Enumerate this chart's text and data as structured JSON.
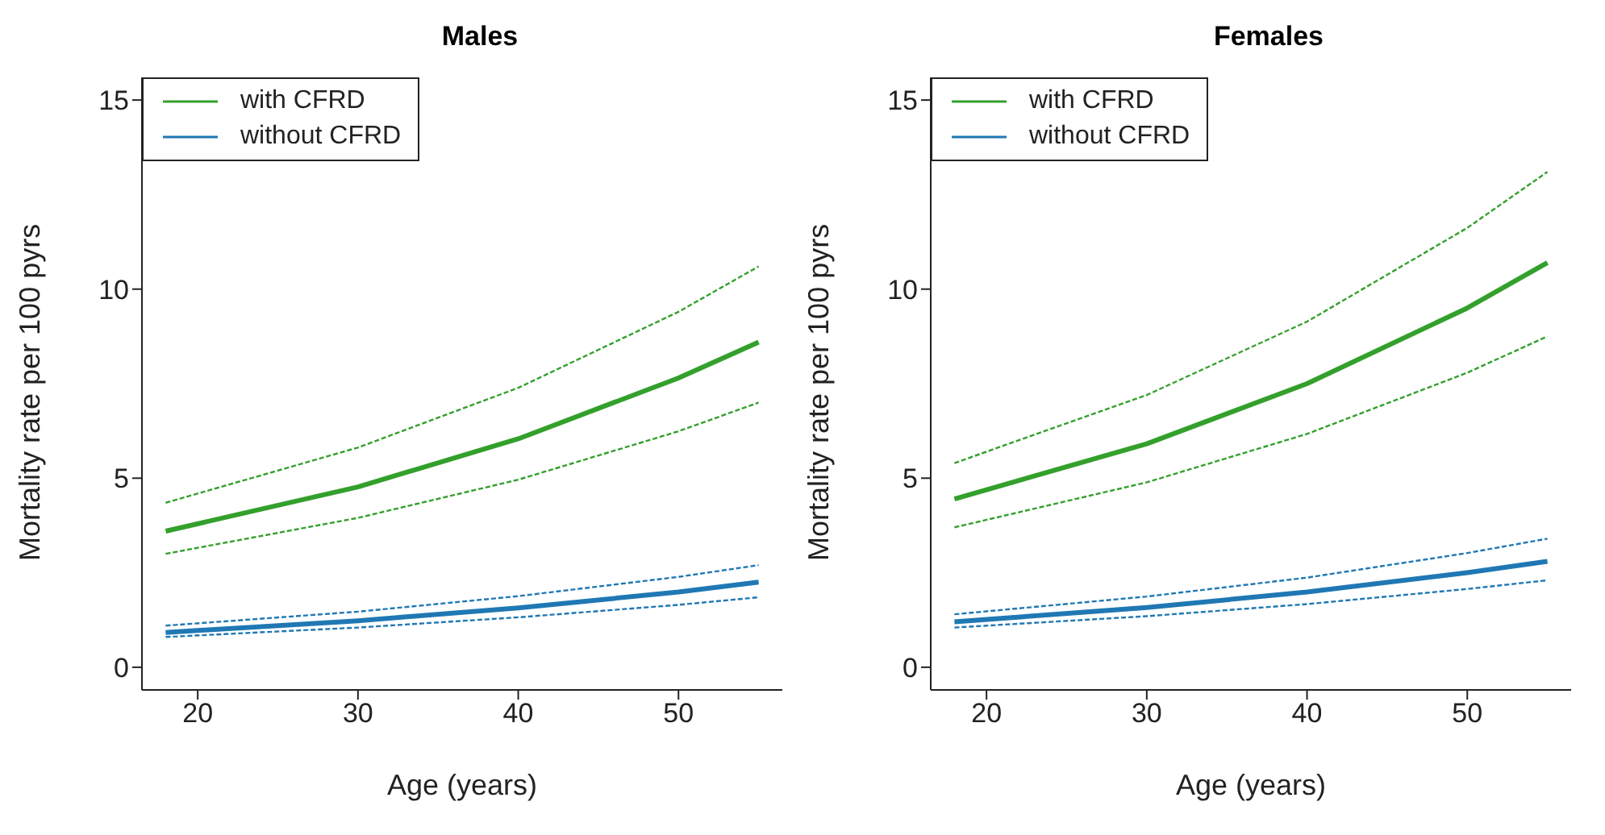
{
  "chart_data": [
    {
      "type": "line",
      "title": "Males",
      "xlabel": "Age (years)",
      "ylabel": "Mortality rate per 100 pyrs",
      "x": [
        18,
        30,
        40,
        50,
        55
      ],
      "xlim": [
        16.52,
        56.48
      ],
      "xticks": [
        20,
        30,
        40,
        50
      ],
      "ylim": [
        -0.6,
        15.6
      ],
      "yticks": [
        0,
        5,
        10,
        15
      ],
      "grid": false,
      "legend": "top left",
      "marker": "none",
      "series": [
        {
          "name": "with CFRD",
          "color": "#33a02c",
          "line_style": "solid",
          "values": [
            3.6,
            4.77,
            6.04,
            7.65,
            8.6
          ]
        },
        {
          "color": "#33a02c",
          "line_style": "dashed",
          "values": [
            3.0,
            3.95,
            4.96,
            6.24,
            7.0
          ]
        },
        {
          "color": "#33a02c",
          "line_style": "dashed",
          "values": [
            4.35,
            5.81,
            7.39,
            9.4,
            10.6
          ]
        },
        {
          "name": "without CFRD",
          "color": "#1f78b4",
          "line_style": "solid",
          "values": [
            0.92,
            1.23,
            1.57,
            1.99,
            2.25
          ]
        },
        {
          "color": "#1f78b4",
          "line_style": "dashed",
          "values": [
            0.8,
            1.05,
            1.32,
            1.65,
            1.85
          ]
        },
        {
          "color": "#1f78b4",
          "line_style": "dashed",
          "values": [
            1.1,
            1.47,
            1.88,
            2.39,
            2.7
          ]
        }
      ]
    },
    {
      "type": "line",
      "title": "Females",
      "xlabel": "Age (years)",
      "ylabel": "Mortality rate per 100 pyrs",
      "x": [
        18,
        30,
        40,
        50,
        55
      ],
      "xlim": [
        16.52,
        56.48
      ],
      "xticks": [
        20,
        30,
        40,
        50
      ],
      "ylim": [
        -0.6,
        15.6
      ],
      "yticks": [
        0,
        5,
        10,
        15
      ],
      "grid": false,
      "legend": "top left",
      "marker": "none",
      "series": [
        {
          "name": "with CFRD",
          "color": "#33a02c",
          "line_style": "solid",
          "values": [
            4.45,
            5.91,
            7.5,
            9.5,
            10.7
          ]
        },
        {
          "color": "#33a02c",
          "line_style": "dashed",
          "values": [
            3.7,
            4.89,
            6.17,
            7.79,
            8.75
          ]
        },
        {
          "color": "#33a02c",
          "line_style": "dashed",
          "values": [
            5.4,
            7.2,
            9.14,
            11.62,
            13.1
          ]
        },
        {
          "name": "without CFRD",
          "color": "#1f78b4",
          "line_style": "solid",
          "values": [
            1.2,
            1.58,
            1.99,
            2.5,
            2.8
          ]
        },
        {
          "color": "#1f78b4",
          "line_style": "dashed",
          "values": [
            1.05,
            1.35,
            1.67,
            2.07,
            2.3
          ]
        },
        {
          "color": "#1f78b4",
          "line_style": "dashed",
          "values": [
            1.4,
            1.87,
            2.37,
            3.02,
            3.4
          ]
        }
      ]
    }
  ]
}
